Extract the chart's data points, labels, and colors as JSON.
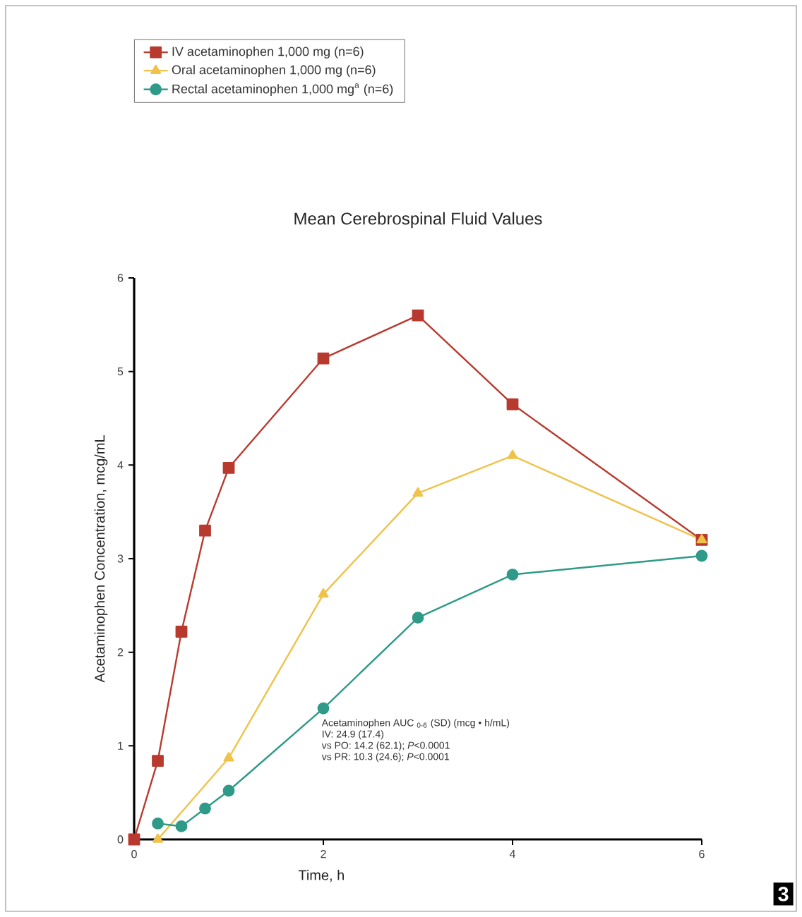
{
  "chart_data": {
    "type": "line",
    "title": "Mean Cerebrospinal Fluid Values",
    "xlabel": "Time, h",
    "ylabel": "Acetaminophen Concentration, mcg/mL",
    "xlim": [
      0,
      6
    ],
    "xticks": [
      0,
      2,
      4,
      6
    ],
    "ylim": [
      0,
      6
    ],
    "yticks": [
      0,
      1,
      2,
      3,
      4,
      5,
      6
    ],
    "grid": false,
    "legend": "top",
    "series": [
      {
        "name": "IV acetaminophen 1,000 mg (n=6)",
        "color": "#b83a2e",
        "marker": "square",
        "x": [
          0,
          0.25,
          0.5,
          0.75,
          1,
          2,
          3,
          4,
          6
        ],
        "values": [
          0,
          0.84,
          2.22,
          3.3,
          3.97,
          5.14,
          5.6,
          4.65,
          3.2
        ]
      },
      {
        "name": "Oral acetaminophen 1,000 mg (n=6)",
        "color": "#f0c24a",
        "marker": "triangle",
        "x": [
          0.25,
          1,
          2,
          3,
          4,
          6
        ],
        "values": [
          0,
          0.87,
          2.62,
          3.7,
          4.1,
          3.2
        ]
      },
      {
        "name": "Rectal acetaminophen 1,000 mg$^{a}$ (n=6)",
        "color": "#2f9a88",
        "marker": "circle",
        "x": [
          0.25,
          0.5,
          0.75,
          1,
          2,
          3,
          4,
          6
        ],
        "values": [
          0.17,
          0.14,
          0.33,
          0.52,
          1.4,
          2.37,
          2.83,
          3.03
        ]
      }
    ],
    "annotations": [
      "Acetaminophen AUC $_{0-6}$ (SD) (mcg • h/mL)",
      "IV: 24.9 (17.4)",
      "vs PO: 14.2 (62.1); *P*<0.0001",
      "vs PR: 10.3 (24.6); *P*<0.0001",
      "3"
    ]
  }
}
